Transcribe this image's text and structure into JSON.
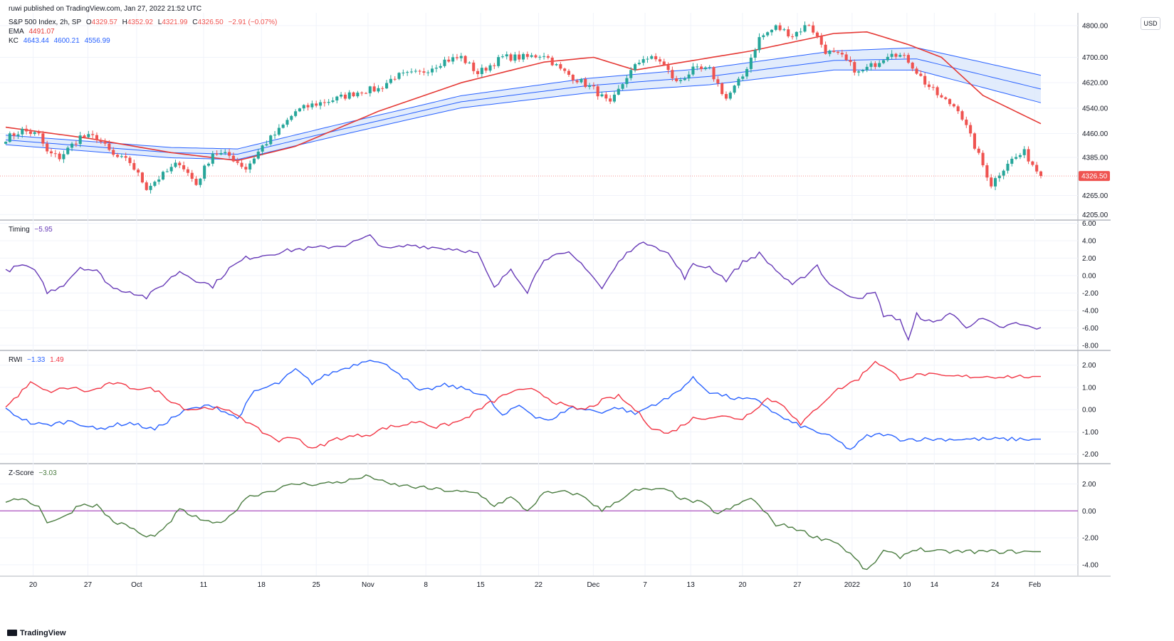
{
  "header": {
    "published": "ruwi published on TradingView.com, Jan 27, 2022 21:52 UTC",
    "symbol": "S&P 500 Index, 2h, SP",
    "o_label": "O",
    "o": "4329.57",
    "h_label": "H",
    "h": "4352.92",
    "l_label": "L",
    "l": "4321.99",
    "c_label": "C",
    "c": "4326.50",
    "change": "−2.91 (−0.07%)",
    "ema_label": "EMA",
    "ema": "4491.07",
    "kc_label": "KC",
    "kc_upper": "4643.44",
    "kc_mid": "4600.21",
    "kc_lower": "4556.99"
  },
  "currency": "USD",
  "price_tag": "4326.50",
  "colors": {
    "up": "#26a69a",
    "down": "#ef5350",
    "ema": "#e53935",
    "kc": "#2962ff",
    "kc_fill": "#dbe7fb",
    "timing": "#673ab7",
    "rwi_high": "#2962ff",
    "rwi_low": "#f23645",
    "zscore": "#4a7c40",
    "zero": "#9c27b0"
  },
  "pane_labels": {
    "timing": "Timing",
    "timing_value": "−5.95",
    "rwi": "RWI",
    "rwi_high_value": "−1.33",
    "rwi_low_value": "1.49",
    "zscore": "Z-Score",
    "zscore_value": "−3.03"
  },
  "brand": "TradingView",
  "x_ticks": [
    "20",
    "27",
    "Oct",
    "11",
    "18",
    "25",
    "Nov",
    "8",
    "15",
    "22",
    "Dec",
    "7",
    "13",
    "20",
    "27",
    "2022",
    "10",
    "14",
    "24",
    "Feb"
  ],
  "chart_data": [
    {
      "type": "candlestick",
      "title": "S&P 500 Index, 2h, SP",
      "y_ticks": [
        "4800.00",
        "4700.00",
        "4620.00",
        "4540.00",
        "4460.00",
        "4385.00",
        "4265.00",
        "4205.00"
      ],
      "ylim": [
        4190,
        4840
      ],
      "close_anchors": [
        [
          0,
          4445
        ],
        [
          4,
          4470
        ],
        [
          8,
          4455
        ],
        [
          10,
          4400
        ],
        [
          13,
          4385
        ],
        [
          18,
          4450
        ],
        [
          22,
          4448
        ],
        [
          26,
          4390
        ],
        [
          30,
          4370
        ],
        [
          34,
          4290
        ],
        [
          38,
          4330
        ],
        [
          42,
          4370
        ],
        [
          46,
          4300
        ],
        [
          50,
          4400
        ],
        [
          54,
          4390
        ],
        [
          58,
          4350
        ],
        [
          62,
          4420
        ],
        [
          66,
          4470
        ],
        [
          70,
          4530
        ],
        [
          74,
          4550
        ],
        [
          80,
          4570
        ],
        [
          86,
          4595
        ],
        [
          90,
          4600
        ],
        [
          94,
          4640
        ],
        [
          100,
          4650
        ],
        [
          106,
          4690
        ],
        [
          110,
          4700
        ],
        [
          114,
          4650
        ],
        [
          120,
          4700
        ],
        [
          126,
          4700
        ],
        [
          130,
          4710
        ],
        [
          134,
          4660
        ],
        [
          138,
          4630
        ],
        [
          142,
          4600
        ],
        [
          146,
          4550
        ],
        [
          150,
          4640
        ],
        [
          154,
          4700
        ],
        [
          158,
          4690
        ],
        [
          162,
          4620
        ],
        [
          166,
          4660
        ],
        [
          170,
          4660
        ],
        [
          174,
          4570
        ],
        [
          178,
          4640
        ],
        [
          182,
          4760
        ],
        [
          186,
          4795
        ],
        [
          190,
          4770
        ],
        [
          194,
          4805
        ],
        [
          198,
          4720
        ],
        [
          202,
          4700
        ],
        [
          206,
          4650
        ],
        [
          210,
          4680
        ],
        [
          214,
          4720
        ],
        [
          218,
          4690
        ],
        [
          222,
          4620
        ],
        [
          226,
          4570
        ],
        [
          230,
          4540
        ],
        [
          234,
          4420
        ],
        [
          238,
          4300
        ],
        [
          242,
          4370
        ],
        [
          246,
          4400
        ],
        [
          250,
          4326.5
        ]
      ],
      "ema_anchors": [
        [
          0,
          4480
        ],
        [
          20,
          4445
        ],
        [
          40,
          4400
        ],
        [
          56,
          4375
        ],
        [
          70,
          4420
        ],
        [
          90,
          4530
        ],
        [
          110,
          4620
        ],
        [
          130,
          4685
        ],
        [
          142,
          4700
        ],
        [
          152,
          4660
        ],
        [
          166,
          4690
        ],
        [
          180,
          4720
        ],
        [
          200,
          4775
        ],
        [
          208,
          4780
        ],
        [
          218,
          4740
        ],
        [
          226,
          4700
        ],
        [
          236,
          4580
        ],
        [
          250,
          4491.07
        ]
      ],
      "kc_anchors": [
        [
          0,
          4440
        ],
        [
          40,
          4400
        ],
        [
          56,
          4395
        ],
        [
          80,
          4470
        ],
        [
          110,
          4560
        ],
        [
          140,
          4610
        ],
        [
          170,
          4640
        ],
        [
          200,
          4690
        ],
        [
          220,
          4695
        ],
        [
          250,
          4600.21
        ]
      ],
      "kc_width_anchors": [
        [
          0,
          15
        ],
        [
          100,
          18
        ],
        [
          200,
          30
        ],
        [
          250,
          43.2
        ]
      ]
    },
    {
      "type": "line",
      "title": "Timing",
      "y_ticks": [
        "6.00",
        "4.00",
        "2.00",
        "0.00",
        "-2.00",
        "-4.00",
        "-6.00",
        "-8.00"
      ],
      "ylim": [
        -8.5,
        6.2
      ],
      "anchors": [
        [
          0,
          0.5
        ],
        [
          4,
          1.2
        ],
        [
          8,
          0.2
        ],
        [
          10,
          -2
        ],
        [
          14,
          -1
        ],
        [
          18,
          1
        ],
        [
          22,
          0.5
        ],
        [
          26,
          -1.5
        ],
        [
          30,
          -1.8
        ],
        [
          34,
          -2.5
        ],
        [
          38,
          -1
        ],
        [
          42,
          0.5
        ],
        [
          46,
          -0.5
        ],
        [
          50,
          -1.2
        ],
        [
          54,
          0.8
        ],
        [
          58,
          2
        ],
        [
          64,
          2.5
        ],
        [
          70,
          3
        ],
        [
          76,
          3.2
        ],
        [
          82,
          3.5
        ],
        [
          88,
          4.5
        ],
        [
          92,
          3
        ],
        [
          98,
          3.5
        ],
        [
          104,
          3.2
        ],
        [
          110,
          3
        ],
        [
          114,
          2.5
        ],
        [
          118,
          -1.5
        ],
        [
          122,
          0.8
        ],
        [
          126,
          -1.8
        ],
        [
          130,
          2
        ],
        [
          136,
          2.5
        ],
        [
          140,
          1
        ],
        [
          144,
          -1.5
        ],
        [
          148,
          1.5
        ],
        [
          152,
          3.5
        ],
        [
          156,
          3.7
        ],
        [
          160,
          2.5
        ],
        [
          164,
          -0.2
        ],
        [
          166,
          1.2
        ],
        [
          170,
          1
        ],
        [
          174,
          -0.5
        ],
        [
          178,
          1.5
        ],
        [
          182,
          2.5
        ],
        [
          190,
          -1.2
        ],
        [
          196,
          1.2
        ],
        [
          198,
          -0.5
        ],
        [
          202,
          -2
        ],
        [
          206,
          -2.5
        ],
        [
          210,
          -2
        ],
        [
          212,
          -4.5
        ],
        [
          216,
          -5
        ],
        [
          218,
          -7.5
        ],
        [
          220,
          -4.5
        ],
        [
          224,
          -5.5
        ],
        [
          228,
          -4.3
        ],
        [
          232,
          -5.8
        ],
        [
          236,
          -5
        ],
        [
          240,
          -6
        ],
        [
          244,
          -5.5
        ],
        [
          248,
          -6
        ],
        [
          250,
          -5.95
        ]
      ]
    },
    {
      "type": "line",
      "title": "RWI",
      "y_ticks": [
        "2.00",
        "1.00",
        "0.00",
        "-1.00",
        "-2.00"
      ],
      "ylim": [
        -2.4,
        2.6
      ],
      "series": [
        {
          "name": "RWI",
          "anchors": [
            [
              0,
              0
            ],
            [
              6,
              -0.6
            ],
            [
              10,
              -0.7
            ],
            [
              16,
              -0.5
            ],
            [
              22,
              -0.9
            ],
            [
              26,
              -0.7
            ],
            [
              30,
              -0.6
            ],
            [
              36,
              -0.9
            ],
            [
              40,
              -0.4
            ],
            [
              44,
              0
            ],
            [
              50,
              0.2
            ],
            [
              56,
              -0.4
            ],
            [
              60,
              0.8
            ],
            [
              66,
              1.2
            ],
            [
              70,
              1.8
            ],
            [
              74,
              1.2
            ],
            [
              78,
              1.6
            ],
            [
              84,
              2
            ],
            [
              88,
              2.3
            ],
            [
              94,
              1.8
            ],
            [
              100,
              0.8
            ],
            [
              106,
              1.1
            ],
            [
              112,
              0.9
            ],
            [
              116,
              0.6
            ],
            [
              120,
              -0.3
            ],
            [
              124,
              0.2
            ],
            [
              128,
              -0.3
            ],
            [
              132,
              -0.5
            ],
            [
              136,
              0.1
            ],
            [
              140,
              0
            ],
            [
              144,
              -0.1
            ],
            [
              148,
              0.1
            ],
            [
              152,
              -0.2
            ],
            [
              156,
              0.2
            ],
            [
              160,
              0.5
            ],
            [
              166,
              1.4
            ],
            [
              170,
              0.8
            ],
            [
              176,
              0.5
            ],
            [
              182,
              0.4
            ],
            [
              186,
              -0.2
            ],
            [
              190,
              -0.6
            ],
            [
              196,
              -1
            ],
            [
              200,
              -1.3
            ],
            [
              204,
              -1.8
            ],
            [
              208,
              -1.2
            ],
            [
              212,
              -1.1
            ],
            [
              216,
              -1.33
            ],
            [
              250,
              -1.33
            ]
          ]
        },
        {
          "name": "RWI",
          "anchors": [
            [
              0,
              0.1
            ],
            [
              6,
              1.2
            ],
            [
              10,
              0.8
            ],
            [
              16,
              1
            ],
            [
              20,
              0.8
            ],
            [
              26,
              1.2
            ],
            [
              30,
              1
            ],
            [
              36,
              0.9
            ],
            [
              40,
              0.4
            ],
            [
              44,
              0
            ],
            [
              50,
              0.1
            ],
            [
              56,
              -0.2
            ],
            [
              60,
              -0.8
            ],
            [
              66,
              -1.4
            ],
            [
              70,
              -1.2
            ],
            [
              74,
              -1.8
            ],
            [
              80,
              -1.3
            ],
            [
              84,
              -1.2
            ],
            [
              88,
              -1.1
            ],
            [
              92,
              -0.8
            ],
            [
              96,
              -0.7
            ],
            [
              100,
              -0.5
            ],
            [
              104,
              -0.8
            ],
            [
              110,
              -0.5
            ],
            [
              116,
              0.2
            ],
            [
              122,
              0.8
            ],
            [
              128,
              0.9
            ],
            [
              132,
              0.4
            ],
            [
              136,
              0.1
            ],
            [
              140,
              0
            ],
            [
              144,
              0.4
            ],
            [
              148,
              0.6
            ],
            [
              152,
              0
            ],
            [
              156,
              -0.8
            ],
            [
              160,
              -1.1
            ],
            [
              166,
              -0.4
            ],
            [
              172,
              -0.3
            ],
            [
              178,
              -0.4
            ],
            [
              184,
              0.5
            ],
            [
              188,
              0.2
            ],
            [
              192,
              -0.7
            ],
            [
              196,
              0.1
            ],
            [
              200,
              0.8
            ],
            [
              206,
              1.4
            ],
            [
              210,
              2.2
            ],
            [
              216,
              1.4
            ],
            [
              222,
              1.6
            ],
            [
              226,
              1.49
            ],
            [
              250,
              1.49
            ]
          ]
        }
      ]
    },
    {
      "type": "line",
      "title": "Z-Score",
      "y_ticks": [
        "2.00",
        "0.00",
        "-2.00",
        "-4.00"
      ],
      "ylim": [
        -4.8,
        3.4
      ],
      "anchors": [
        [
          0,
          0.5
        ],
        [
          4,
          1
        ],
        [
          8,
          0.3
        ],
        [
          10,
          -0.8
        ],
        [
          14,
          -0.5
        ],
        [
          18,
          0.5
        ],
        [
          22,
          0.4
        ],
        [
          26,
          -0.8
        ],
        [
          30,
          -1.2
        ],
        [
          34,
          -2
        ],
        [
          38,
          -1.5
        ],
        [
          42,
          0.1
        ],
        [
          46,
          -0.5
        ],
        [
          50,
          -1
        ],
        [
          54,
          -0.5
        ],
        [
          58,
          1
        ],
        [
          64,
          1.5
        ],
        [
          70,
          2
        ],
        [
          76,
          2
        ],
        [
          82,
          2.2
        ],
        [
          88,
          2.6
        ],
        [
          92,
          2
        ],
        [
          98,
          1.8
        ],
        [
          104,
          1.6
        ],
        [
          110,
          1.4
        ],
        [
          114,
          1.3
        ],
        [
          118,
          0.4
        ],
        [
          122,
          1
        ],
        [
          126,
          0
        ],
        [
          130,
          1.3
        ],
        [
          136,
          1.4
        ],
        [
          140,
          1
        ],
        [
          144,
          0
        ],
        [
          148,
          0.8
        ],
        [
          152,
          1.5
        ],
        [
          156,
          1.6
        ],
        [
          160,
          1.5
        ],
        [
          164,
          0.8
        ],
        [
          168,
          0.6
        ],
        [
          172,
          -0.2
        ],
        [
          176,
          0.3
        ],
        [
          180,
          1
        ],
        [
          186,
          -1
        ],
        [
          190,
          -1.2
        ],
        [
          196,
          -2
        ],
        [
          200,
          -2.2
        ],
        [
          204,
          -3.2
        ],
        [
          208,
          -4.5
        ],
        [
          212,
          -3
        ],
        [
          216,
          -3.4
        ],
        [
          220,
          -2.8
        ],
        [
          224,
          -3.03
        ],
        [
          250,
          -3.03
        ]
      ]
    }
  ]
}
